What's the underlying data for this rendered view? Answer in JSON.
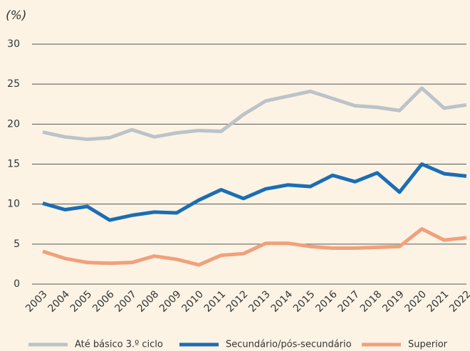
{
  "chart_data": {
    "type": "line",
    "y_label": "(%)",
    "categories": [
      "2003",
      "2004",
      "2005",
      "2006",
      "2007",
      "2008",
      "2009",
      "2010",
      "2011",
      "2012",
      "2013",
      "2014",
      "2015",
      "2016",
      "2017",
      "2018",
      "2019",
      "2020",
      "2021",
      "2022"
    ],
    "series": [
      {
        "name": "Até básico 3.º ciclo",
        "color": "#bcc3c9",
        "values": [
          19.0,
          18.4,
          18.1,
          18.3,
          19.3,
          18.4,
          18.9,
          19.2,
          19.1,
          21.2,
          22.9,
          23.5,
          24.1,
          23.2,
          22.3,
          22.1,
          21.7,
          24.5,
          22.0,
          22.4
        ]
      },
      {
        "name": "Secundário/pós-secundário",
        "color": "#1b6db5",
        "values": [
          10.1,
          9.3,
          9.7,
          8.0,
          8.6,
          9.0,
          8.9,
          10.5,
          11.8,
          10.7,
          11.9,
          12.4,
          12.2,
          13.6,
          12.8,
          13.9,
          11.5,
          15.0,
          13.8,
          13.5
        ]
      },
      {
        "name": "Superior",
        "color": "#f1a07b",
        "values": [
          4.1,
          3.2,
          2.7,
          2.6,
          2.7,
          3.5,
          3.1,
          2.4,
          3.6,
          3.8,
          5.1,
          5.1,
          4.7,
          4.5,
          4.5,
          4.6,
          4.7,
          6.9,
          5.5,
          5.8
        ]
      }
    ],
    "ylim": [
      0,
      30
    ],
    "yticks": [
      0,
      5,
      10,
      15,
      20,
      25,
      30
    ],
    "grid": true
  }
}
